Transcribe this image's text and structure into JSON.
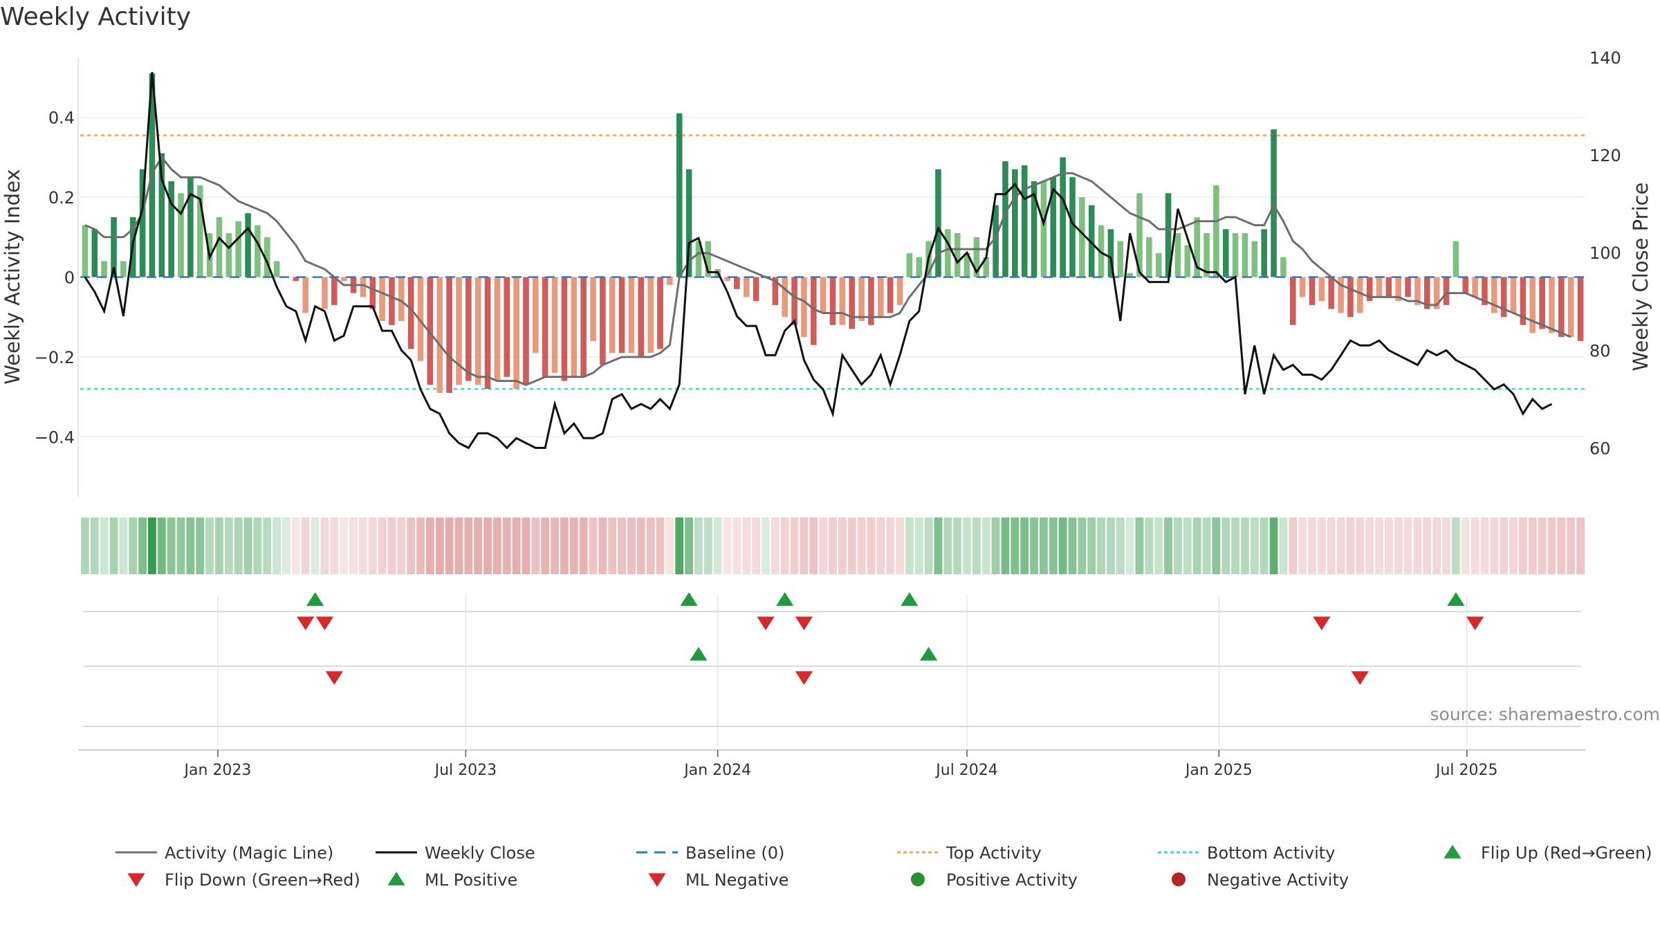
{
  "title": "Weekly Activity",
  "source": "source: sharemaestro.com",
  "chart_data": {
    "type": "bar",
    "title": "Weekly Activity",
    "y_left_label": "Weekly Activity Index",
    "y_right_label": "Weekly Close Price",
    "y_left_ticks": [
      {
        "value": 0.4,
        "label": "0.4"
      },
      {
        "value": 0.2,
        "label": "0.2"
      },
      {
        "value": 0,
        "label": "0"
      },
      {
        "value": -0.2,
        "label": "−0.2"
      },
      {
        "value": -0.4,
        "label": "−0.4"
      }
    ],
    "y_right_ticks": [
      {
        "value": 140,
        "label": "140"
      },
      {
        "value": 120,
        "label": "120"
      },
      {
        "value": 100,
        "label": "100"
      },
      {
        "value": 80,
        "label": "80"
      },
      {
        "value": 60,
        "label": "60"
      }
    ],
    "ylim_left": [
      -0.55,
      0.55
    ],
    "ylim_right": [
      50,
      140
    ],
    "x_ticks": [
      {
        "date": "2023-01-01",
        "label": "Jan 2023"
      },
      {
        "date": "2023-07-01",
        "label": "Jul 2023"
      },
      {
        "date": "2024-01-01",
        "label": "Jan 2024"
      },
      {
        "date": "2024-07-01",
        "label": "Jul 2024"
      },
      {
        "date": "2025-01-01",
        "label": "Jan 2025"
      },
      {
        "date": "2025-07-01",
        "label": "Jul 2025"
      }
    ],
    "start_date": "2022-09-26",
    "thresholds": {
      "top": 0.355,
      "bottom": -0.28,
      "baseline": 0
    },
    "activity": [
      0.13,
      0.12,
      0.04,
      0.15,
      0.04,
      0.15,
      0.27,
      0.51,
      0.31,
      0.24,
      0.21,
      0.25,
      0.23,
      0.11,
      0.15,
      0.11,
      0.14,
      0.16,
      0.13,
      0.1,
      0.04,
      0.0,
      -0.01,
      -0.09,
      0.0,
      -0.08,
      -0.07,
      -0.01,
      -0.04,
      -0.05,
      -0.08,
      -0.11,
      -0.12,
      -0.11,
      -0.18,
      -0.21,
      -0.27,
      -0.29,
      -0.29,
      -0.27,
      -0.26,
      -0.27,
      -0.28,
      -0.26,
      -0.25,
      -0.28,
      -0.27,
      -0.19,
      -0.25,
      -0.24,
      -0.26,
      -0.25,
      -0.25,
      -0.16,
      -0.22,
      -0.19,
      -0.19,
      -0.19,
      -0.2,
      -0.19,
      -0.18,
      -0.02,
      0.41,
      0.27,
      0.09,
      0.09,
      0.02,
      -0.01,
      -0.03,
      -0.05,
      -0.06,
      0.0,
      -0.07,
      -0.1,
      -0.12,
      -0.15,
      -0.17,
      -0.09,
      -0.12,
      -0.12,
      -0.13,
      -0.11,
      -0.12,
      -0.1,
      -0.09,
      -0.07,
      0.06,
      0.05,
      0.09,
      0.27,
      0.12,
      0.11,
      0.06,
      0.1,
      0.05,
      0.18,
      0.29,
      0.27,
      0.28,
      0.24,
      0.24,
      0.25,
      0.3,
      0.25,
      0.2,
      0.18,
      0.13,
      0.12,
      0.09,
      0.01,
      0.21,
      0.1,
      0.06,
      0.21,
      0.11,
      0.08,
      0.15,
      0.11,
      0.23,
      0.12,
      0.11,
      0.11,
      0.09,
      0.12,
      0.37,
      0.05,
      -0.12,
      -0.05,
      -0.07,
      -0.06,
      -0.08,
      -0.09,
      -0.1,
      -0.09,
      -0.06,
      -0.05,
      -0.05,
      -0.06,
      -0.05,
      -0.07,
      -0.08,
      -0.08,
      -0.07,
      0.09,
      -0.04,
      -0.05,
      -0.07,
      -0.09,
      -0.1,
      -0.09,
      -0.12,
      -0.14,
      -0.13,
      -0.14,
      -0.15,
      -0.15,
      -0.16
    ],
    "magic_line": [
      0.13,
      0.12,
      0.1,
      0.1,
      0.1,
      0.12,
      0.16,
      0.26,
      0.3,
      0.27,
      0.25,
      0.25,
      0.25,
      0.24,
      0.23,
      0.21,
      0.19,
      0.18,
      0.17,
      0.16,
      0.14,
      0.11,
      0.08,
      0.04,
      0.03,
      0.02,
      0.0,
      -0.02,
      -0.02,
      -0.02,
      -0.03,
      -0.04,
      -0.05,
      -0.06,
      -0.08,
      -0.11,
      -0.14,
      -0.17,
      -0.2,
      -0.22,
      -0.24,
      -0.25,
      -0.25,
      -0.26,
      -0.26,
      -0.26,
      -0.27,
      -0.26,
      -0.25,
      -0.25,
      -0.25,
      -0.25,
      -0.25,
      -0.24,
      -0.22,
      -0.21,
      -0.2,
      -0.2,
      -0.2,
      -0.2,
      -0.19,
      -0.17,
      0.0,
      0.04,
      0.06,
      0.06,
      0.05,
      0.04,
      0.03,
      0.02,
      0.01,
      0.0,
      -0.01,
      -0.03,
      -0.05,
      -0.06,
      -0.08,
      -0.09,
      -0.09,
      -0.09,
      -0.1,
      -0.1,
      -0.1,
      -0.1,
      -0.1,
      -0.09,
      -0.05,
      -0.02,
      0.01,
      0.06,
      0.07,
      0.07,
      0.07,
      0.07,
      0.07,
      0.1,
      0.16,
      0.2,
      0.22,
      0.23,
      0.24,
      0.25,
      0.26,
      0.26,
      0.25,
      0.24,
      0.22,
      0.2,
      0.18,
      0.16,
      0.15,
      0.14,
      0.12,
      0.12,
      0.12,
      0.13,
      0.14,
      0.14,
      0.14,
      0.15,
      0.15,
      0.14,
      0.13,
      0.13,
      0.18,
      0.14,
      0.09,
      0.07,
      0.04,
      0.02,
      0.0,
      -0.02,
      -0.03,
      -0.04,
      -0.05,
      -0.05,
      -0.05,
      -0.05,
      -0.06,
      -0.06,
      -0.07,
      -0.07,
      -0.04,
      -0.04,
      -0.04,
      -0.05,
      -0.06,
      -0.07,
      -0.08,
      -0.09,
      -0.1,
      -0.11,
      -0.12,
      -0.13,
      -0.14,
      -0.15
    ],
    "weekly_close": [
      95,
      92,
      88,
      97,
      87,
      102,
      109,
      137,
      115,
      110,
      108,
      112,
      111,
      99,
      103,
      101,
      103,
      105,
      102,
      98,
      93,
      89,
      88,
      82,
      89,
      88,
      82,
      83,
      89,
      89,
      89,
      84,
      84,
      80,
      78,
      72,
      68,
      67,
      63,
      61,
      60,
      63,
      63,
      62,
      60,
      62,
      61,
      60,
      60,
      69,
      63,
      65,
      62,
      62,
      63,
      70,
      71,
      68,
      69,
      68,
      70,
      68,
      73,
      102,
      103,
      96,
      96,
      92,
      87,
      85,
      85,
      79,
      79,
      84,
      86,
      78,
      74,
      72,
      67,
      79,
      76,
      73,
      75,
      79,
      73,
      79,
      86,
      88,
      99,
      105,
      102,
      98,
      100,
      96,
      99,
      112,
      112,
      114,
      111,
      112,
      106,
      113,
      111,
      106,
      104,
      102,
      100,
      99,
      86,
      104,
      96,
      94,
      94,
      94,
      109,
      103,
      97,
      96,
      96,
      94,
      95,
      71,
      81,
      71,
      79,
      76,
      77,
      75,
      75,
      74,
      76,
      79,
      82,
      81,
      81,
      82,
      80,
      79,
      78,
      77,
      80,
      79,
      80,
      78,
      77,
      76,
      74,
      72,
      73,
      71,
      67,
      70,
      68,
      69
    ],
    "flip_up_dates": [
      "2023-03-13",
      "2023-12-11",
      "2024-02-19",
      "2024-05-20",
      "2025-06-23"
    ],
    "flip_down_dates": [
      "2023-03-06",
      "2023-03-20",
      "2024-02-05",
      "2024-03-04",
      "2025-03-17",
      "2025-07-07"
    ],
    "ml_positive_dates": [
      "2023-12-18",
      "2024-06-03"
    ],
    "ml_negative_dates": [
      "2023-03-27",
      "2024-03-04",
      "2025-04-14"
    ],
    "legend": [
      {
        "key": "magic",
        "label": "Activity (Magic Line)",
        "color": "#6e6e6e"
      },
      {
        "key": "close",
        "label": "Weekly Close",
        "color": "#111111"
      },
      {
        "key": "baseline",
        "label": "Baseline (0)",
        "color": "#2a79c2"
      },
      {
        "key": "top",
        "label": "Top Activity",
        "color": "#f0a45c"
      },
      {
        "key": "bottom",
        "label": "Bottom Activity",
        "color": "#3fd4d6"
      },
      {
        "key": "flipup",
        "label": "Flip Up (Red→Green)",
        "color": "#23993f"
      },
      {
        "key": "flipdown",
        "label": "Flip Down (Green→Red)",
        "color": "#d62a2a"
      },
      {
        "key": "mlpos",
        "label": "ML Positive",
        "color": "#23993f"
      },
      {
        "key": "mlneg",
        "label": "ML Negative",
        "color": "#d62a2a"
      },
      {
        "key": "posact",
        "label": "Positive Activity",
        "color": "#2d8f2d"
      },
      {
        "key": "negact",
        "label": "Negative Activity",
        "color": "#b32424"
      }
    ]
  }
}
